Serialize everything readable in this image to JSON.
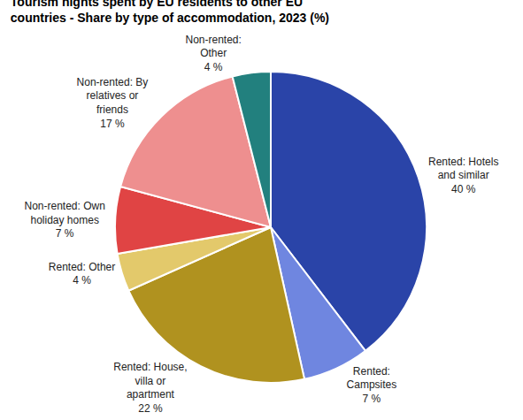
{
  "chart_data": {
    "type": "pie",
    "title": "Tourism nights spent by EU residents to other EU countries - Share by type of accommodation, 2023 (%)",
    "categories": [
      "Rented: Hotels and similar",
      "Rented: Campsites",
      "Rented: House, villa or apartment",
      "Rented: Other",
      "Non-rented: Own holiday homes",
      "Non-rented: By relatives or friends",
      "Non-rented: Other"
    ],
    "values": [
      40,
      7,
      22,
      4,
      7,
      17,
      4
    ],
    "value_labels": [
      "40 %",
      "7 %",
      "22 %",
      "4 %",
      "7 %",
      "17 %",
      "4 %"
    ],
    "colors": [
      "#2a44a8",
      "#6f86e0",
      "#b0921f",
      "#e3c96b",
      "#e04444",
      "#ee8f8f",
      "#22807e"
    ],
    "data_labels": true,
    "legend": false
  }
}
